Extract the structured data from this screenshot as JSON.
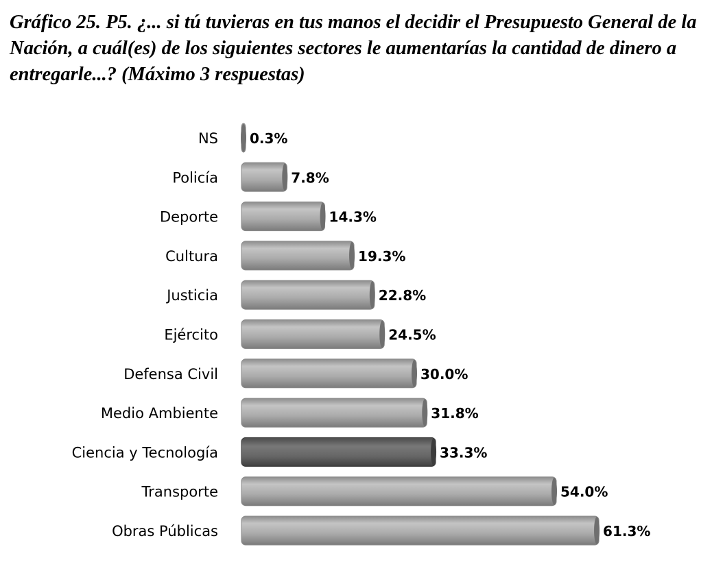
{
  "chart_data": {
    "type": "bar",
    "orientation": "horizontal",
    "title": "Gráfico 25. P5. ¿... si tú tuvieras en tus manos el decidir el Presupuesto General de la Nación, a cuál(es) de los siguientes sectores le aumentarías la cantidad de dinero a entregarle...? (Máximo 3 respuestas)",
    "categories": [
      "NS",
      "Policía",
      "Deporte",
      "Cultura",
      "Justicia",
      "Ejército",
      "Defensa Civil",
      "Medio Ambiente",
      "Ciencia y Tecnología",
      "Transporte",
      "Obras Públicas"
    ],
    "values": [
      0.3,
      7.8,
      14.3,
      19.3,
      22.8,
      24.5,
      30.0,
      31.8,
      33.3,
      54.0,
      61.3
    ],
    "value_labels": [
      "0.3%",
      "7.8%",
      "14.3%",
      "19.3%",
      "22.8%",
      "24.5%",
      "30.0%",
      "31.8%",
      "33.3%",
      "54.0%",
      "61.3%"
    ],
    "highlighted": "Ciencia y Tecnología",
    "unit": "%",
    "xlabel": "",
    "ylabel": "",
    "xlim": [
      0,
      70
    ],
    "grid": false,
    "colors": {
      "bar": "#a9a9a9",
      "highlight": "#5f5f5f"
    }
  }
}
